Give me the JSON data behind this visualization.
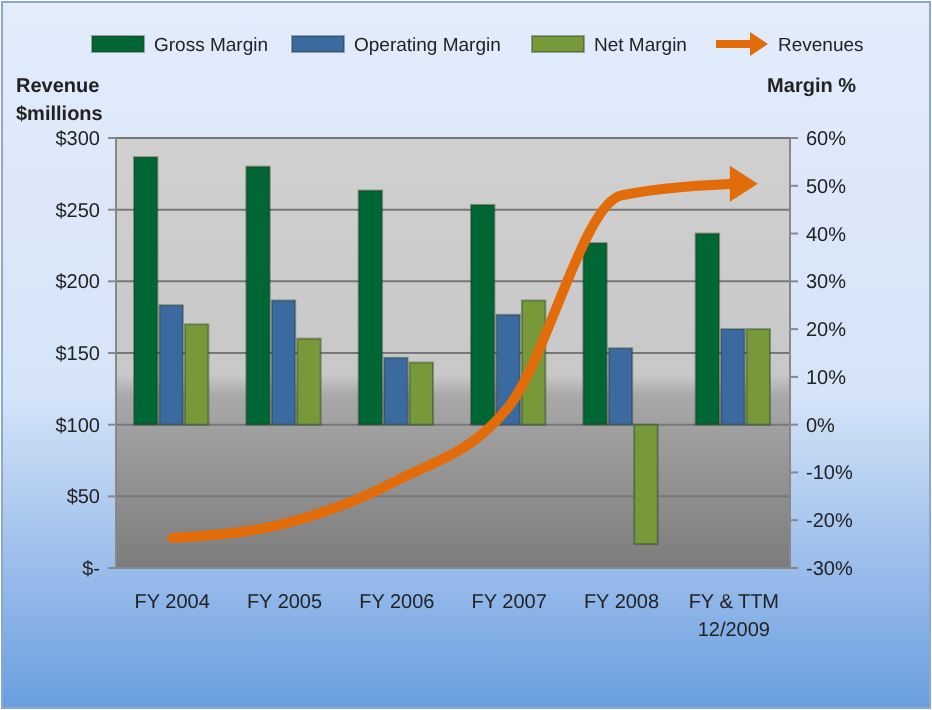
{
  "chart_data": {
    "type": "bar",
    "categories": [
      "FY 2004",
      "FY 2005",
      "FY 2006",
      "FY 2007",
      "FY 2008",
      "FY & TTM\n12/2009"
    ],
    "ylabel": "Revenue\n$millions",
    "y2label": "Margin %",
    "ylim": [
      0,
      300
    ],
    "yticks": [
      {
        "value": 0,
        "label": "$-"
      },
      {
        "value": 50,
        "label": "$50"
      },
      {
        "value": 100,
        "label": "$100"
      },
      {
        "value": 150,
        "label": "$150"
      },
      {
        "value": 200,
        "label": "$200"
      },
      {
        "value": 250,
        "label": "$250"
      },
      {
        "value": 300,
        "label": "$300"
      }
    ],
    "y2lim": [
      -30,
      60
    ],
    "y2ticks": [
      {
        "value": -30,
        "label": "-30%"
      },
      {
        "value": -20,
        "label": "-20%"
      },
      {
        "value": -10,
        "label": "-10%"
      },
      {
        "value": 0,
        "label": "0%"
      },
      {
        "value": 10,
        "label": "10%"
      },
      {
        "value": 20,
        "label": "20%"
      },
      {
        "value": 30,
        "label": "30%"
      },
      {
        "value": 40,
        "label": "40%"
      },
      {
        "value": 50,
        "label": "50%"
      },
      {
        "value": 60,
        "label": "60%"
      }
    ],
    "series": [
      {
        "name": "Gross Margin",
        "color": "#006633",
        "axis": "y2",
        "values": [
          56,
          54,
          49,
          46,
          38,
          40
        ]
      },
      {
        "name": "Operating Margin",
        "color": "#3a6aa0",
        "axis": "y2",
        "values": [
          25,
          26,
          14,
          23,
          16,
          20
        ]
      },
      {
        "name": "Net Margin",
        "color": "#78993a",
        "axis": "y2",
        "values": [
          21,
          18,
          13,
          26,
          -25,
          20
        ]
      },
      {
        "name": "Revenues",
        "type": "line",
        "color": "#e36c0a",
        "values": [
          21,
          31,
          61,
          113,
          260,
          268
        ]
      }
    ],
    "grid": "y",
    "legend": "top",
    "marker": "none",
    "line_style": "solid"
  }
}
